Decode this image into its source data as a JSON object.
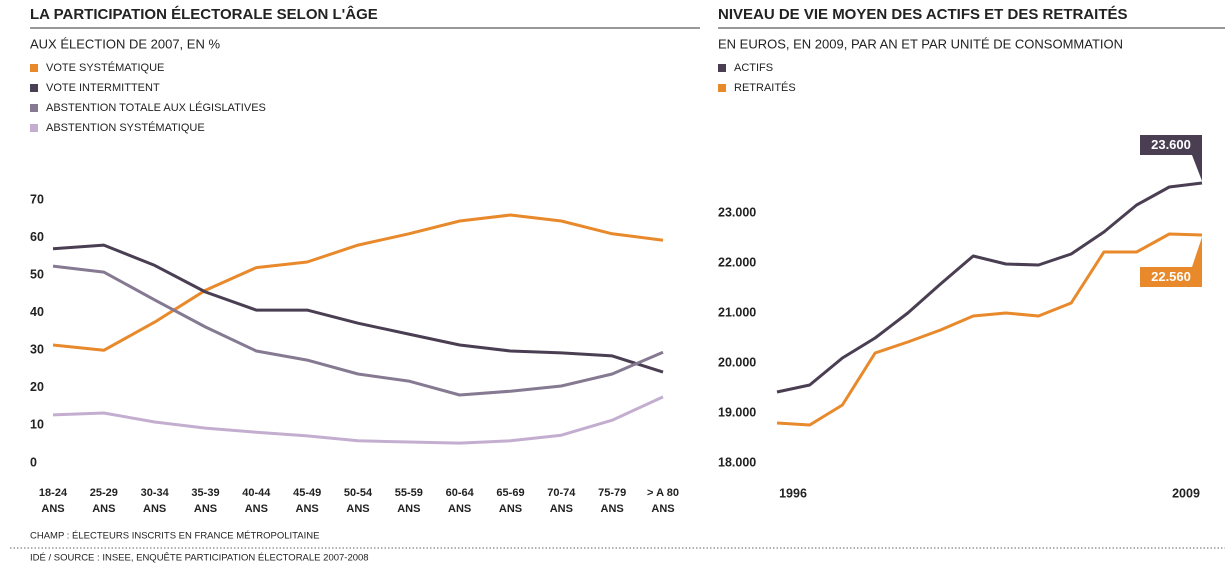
{
  "chart_data": [
    {
      "type": "line",
      "title": "LA PARTICIPATION ÉLECTORALE SELON L'ÂGE",
      "subtitle": "AUX ÉLECTION DE 2007, EN %",
      "note": "CHAMP : ÉLECTEURS INSCRITS EN FRANCE MÉTROPOLITAINE",
      "categories": [
        "18-24 ANS",
        "25-29 ANS",
        "30-34 ANS",
        "35-39 ANS",
        "40-44 ANS",
        "45-49 ANS",
        "50-54 ANS",
        "55-59 ANS",
        "60-64 ANS",
        "65-69 ANS",
        "70-74 ANS",
        "75-79 ANS",
        "> A 80 ANS"
      ],
      "ylim": [
        0,
        70
      ],
      "yticks": [
        0,
        10,
        20,
        30,
        40,
        50,
        60,
        70
      ],
      "grid": false,
      "legend": "top-left",
      "series": [
        {
          "name": "VOTE SYSTÉMATIQUE",
          "color": "#e8892b",
          "values": [
            31.4,
            30,
            37.5,
            46,
            52,
            53.5,
            58,
            61,
            64.4,
            66,
            64.4,
            61,
            59.3
          ]
        },
        {
          "name": "VOTE INTERMITTENT",
          "color": "#4a3f52",
          "values": [
            57,
            58,
            52.6,
            45.5,
            40.7,
            40.7,
            37.2,
            34.3,
            31.4,
            29.8,
            29.3,
            28.5,
            24.2
          ]
        },
        {
          "name": "ABSTENTION TOTALE AUX LÉGISLATIVES",
          "color": "#857a91",
          "values": [
            52.4,
            50.8,
            43.4,
            36.2,
            29.8,
            27.4,
            23.7,
            21.8,
            18.1,
            19.1,
            20.5,
            23.7,
            29.5
          ]
        },
        {
          "name": "ABSTENTION SYSTÉMATIQUE",
          "color": "#c3aed0",
          "values": [
            12.8,
            13.3,
            10.9,
            9.3,
            8.2,
            7.2,
            5.9,
            5.6,
            5.3,
            5.9,
            7.4,
            11.4,
            17.6
          ]
        }
      ]
    },
    {
      "type": "line",
      "title": "NIVEAU DE VIE MOYEN DES ACTIFS ET DES RETRAITÉS",
      "subtitle": "EN EUROS, EN 2009, PAR AN ET PAR UNITÉ DE CONSOMMATION",
      "x": [
        1996,
        1997,
        1998,
        1999,
        2000,
        2001,
        2002,
        2003,
        2004,
        2005,
        2006,
        2007,
        2008,
        2009
      ],
      "xlim": [
        1996,
        2009
      ],
      "xticks": [
        1996,
        2009
      ],
      "ylim": [
        18000,
        24000
      ],
      "yticks": [
        {
          "value": 18000,
          "label": "18.000"
        },
        {
          "value": 19000,
          "label": "19.000"
        },
        {
          "value": 20000,
          "label": "20.000"
        },
        {
          "value": 21000,
          "label": "21.000"
        },
        {
          "value": 22000,
          "label": "22.000"
        },
        {
          "value": 23000,
          "label": "23.000"
        }
      ],
      "grid": false,
      "legend": "top-left",
      "series": [
        {
          "name": "ACTIFS",
          "color": "#4a3f52",
          "values": [
            19420,
            19560,
            20100,
            20500,
            21000,
            21580,
            22140,
            21980,
            21960,
            22180,
            22620,
            23160,
            23520,
            23600
          ],
          "value_labels": [
            null,
            null,
            null,
            null,
            null,
            null,
            null,
            null,
            null,
            null,
            null,
            null,
            null,
            "23.600"
          ]
        },
        {
          "name": "RETRAITÉS",
          "color": "#e8892b",
          "values": [
            18800,
            18760,
            19160,
            20200,
            20420,
            20660,
            20940,
            21000,
            20940,
            21200,
            22220,
            22220,
            22580,
            22560
          ],
          "value_labels": [
            null,
            null,
            null,
            null,
            null,
            null,
            null,
            null,
            null,
            null,
            null,
            null,
            null,
            "22.560"
          ]
        }
      ]
    }
  ],
  "source": "IDÉ / SOURCE : INSEE, ENQUÊTE PARTICIPATION ÉLECTORALE 2007-2008"
}
